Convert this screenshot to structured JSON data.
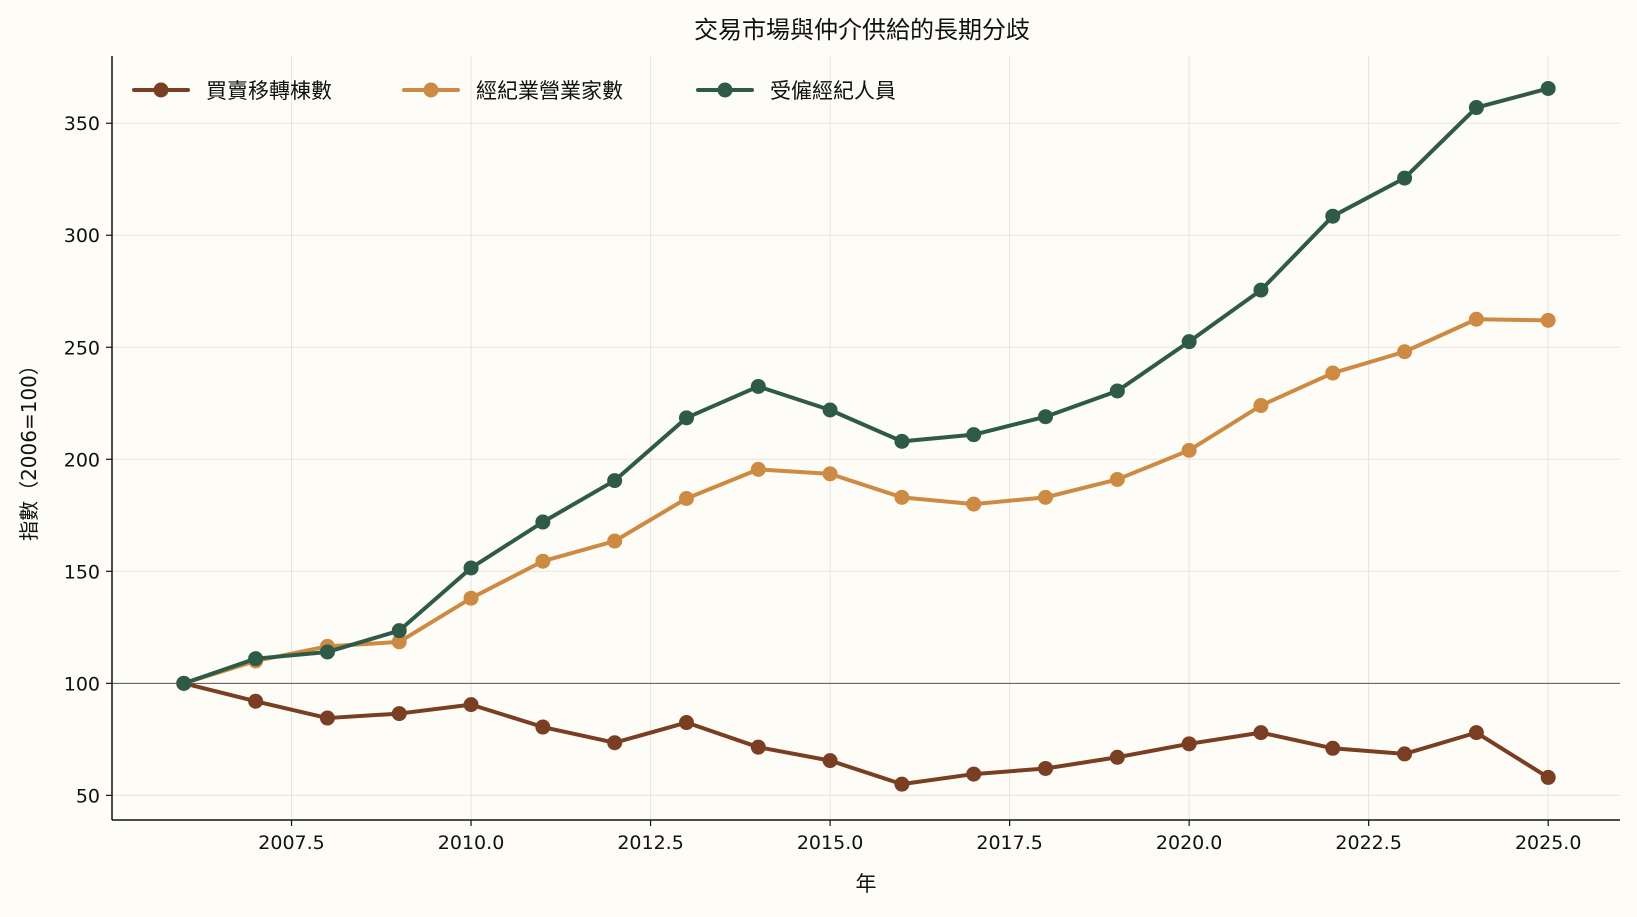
{
  "chart_data": {
    "type": "line",
    "title": "交易市場與仲介供給的長期分歧",
    "xlabel": "年",
    "ylabel": "指數（2006=100）",
    "x": [
      2006,
      2007,
      2008,
      2009,
      2010,
      2011,
      2012,
      2013,
      2014,
      2015,
      2016,
      2017,
      2018,
      2019,
      2020,
      2021,
      2022,
      2023,
      2024,
      2025
    ],
    "xlim": [
      2005.0,
      2026.0
    ],
    "ylim": [
      39,
      380
    ],
    "xticks": [
      2007.5,
      2010.0,
      2012.5,
      2015.0,
      2017.5,
      2020.0,
      2022.5,
      2025.0
    ],
    "xtick_labels": [
      "2007.5",
      "2010.0",
      "2012.5",
      "2015.0",
      "2017.5",
      "2020.0",
      "2022.5",
      "2025.0"
    ],
    "yticks": [
      50,
      100,
      150,
      200,
      250,
      300,
      350
    ],
    "ytick_labels": [
      "50",
      "100",
      "150",
      "200",
      "250",
      "300",
      "350"
    ],
    "reference_line": 100,
    "grid": true,
    "legend_position": "top-left",
    "series": [
      {
        "name": "買賣移轉棟數",
        "color": "#7a3e22",
        "values": [
          100,
          92,
          84.5,
          86.5,
          90.5,
          80.5,
          73.5,
          82.5,
          71.5,
          65.5,
          55,
          59.5,
          62,
          67,
          73,
          78,
          71,
          68.5,
          78,
          58
        ]
      },
      {
        "name": "經紀業營業家數",
        "color": "#cd8a42",
        "values": [
          100,
          110,
          116.5,
          118.5,
          138,
          154.5,
          163.5,
          182.5,
          195.5,
          193.5,
          183,
          180,
          183,
          191,
          204,
          224,
          238.5,
          248,
          262.5,
          262
        ]
      },
      {
        "name": "受僱經紀人員",
        "color": "#2f5a48",
        "values": [
          100,
          111,
          114,
          123.5,
          151.5,
          172,
          190.5,
          218.5,
          232.5,
          222,
          208,
          211,
          219,
          230.5,
          252.5,
          275.5,
          308.5,
          325.5,
          357,
          365.5
        ]
      }
    ]
  }
}
